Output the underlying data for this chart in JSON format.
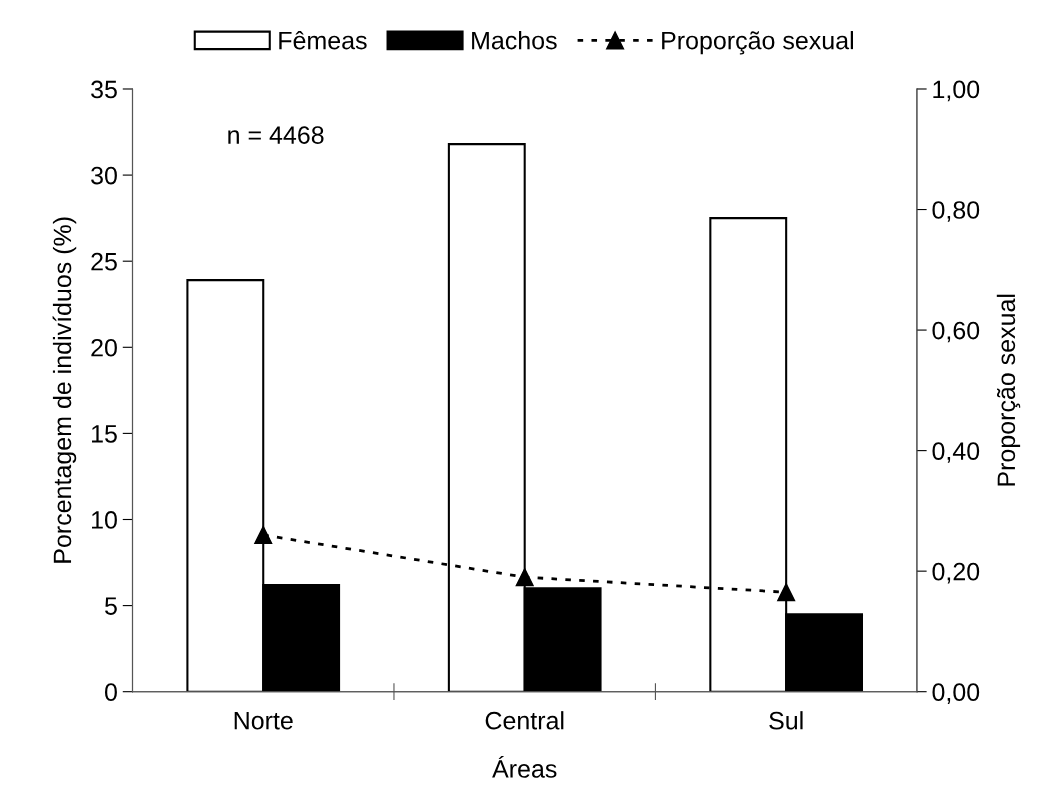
{
  "chart_data": {
    "type": "bar",
    "categories": [
      "Norte",
      "Central",
      "Sul"
    ],
    "series": [
      {
        "name": "Fêmeas",
        "color": "#ffffff",
        "values": [
          23.9,
          31.8,
          27.5
        ]
      },
      {
        "name": "Machos",
        "color": "#000000",
        "values": [
          6.2,
          6.0,
          4.5
        ]
      },
      {
        "name": "Proporção sexual",
        "type": "line",
        "axis": "y2",
        "color": "#000000",
        "marker": "triangle",
        "line_style": "dotted",
        "values": [
          0.26,
          0.19,
          0.165
        ]
      }
    ],
    "xlabel": "Áreas",
    "ylabel": "Porcentagem de indivíduos (%)",
    "y2label": "Proporção sexual",
    "ylim": [
      0,
      35
    ],
    "yticks": [
      0,
      5,
      10,
      15,
      20,
      25,
      30,
      35
    ],
    "y2lim": [
      0,
      1
    ],
    "y2ticks": [
      {
        "value": 0,
        "label": "0,00"
      },
      {
        "value": 0.2,
        "label": "0,20"
      },
      {
        "value": 0.4,
        "label": "0,40"
      },
      {
        "value": 0.6,
        "label": "0,60"
      },
      {
        "value": 0.8,
        "label": "0,80"
      },
      {
        "value": 1,
        "label": "1,00"
      }
    ],
    "annotations": [
      "n = 4468"
    ],
    "legend": "top",
    "grid": false
  }
}
